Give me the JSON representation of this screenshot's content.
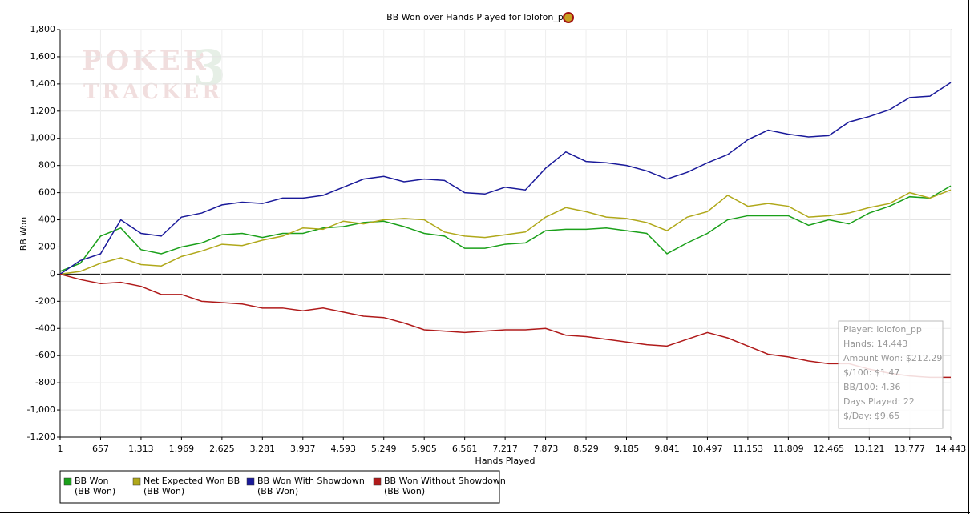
{
  "chart_data": {
    "type": "line",
    "title": "BB Won over Hands Played for lolofon_pp",
    "xlabel": "Hands Played",
    "ylabel": "BB Won",
    "watermark": [
      "POKER",
      "TRACKER",
      "3"
    ],
    "x": [
      1,
      329,
      657,
      985,
      1313,
      1641,
      1969,
      2297,
      2625,
      2953,
      3281,
      3609,
      3937,
      4265,
      4593,
      4921,
      5249,
      5577,
      5905,
      6233,
      6561,
      6889,
      7217,
      7545,
      7873,
      8201,
      8529,
      8857,
      9185,
      9513,
      9841,
      10169,
      10497,
      10825,
      11153,
      11481,
      11809,
      12137,
      12465,
      12793,
      13121,
      13449,
      13777,
      14105,
      14443
    ],
    "series": [
      {
        "name": "BB Won",
        "unit": "(BB Won)",
        "color": "#1aa01a",
        "values": [
          20,
          80,
          280,
          340,
          180,
          150,
          200,
          230,
          290,
          300,
          270,
          300,
          300,
          340,
          350,
          380,
          390,
          350,
          300,
          280,
          190,
          190,
          220,
          230,
          320,
          330,
          330,
          340,
          320,
          300,
          150,
          230,
          300,
          400,
          430,
          430,
          430,
          360,
          400,
          370,
          450,
          500,
          570,
          560,
          650
        ]
      },
      {
        "name": "Net Expected Won BB",
        "unit": "(BB Won)",
        "color": "#b0a81a",
        "values": [
          0,
          20,
          80,
          120,
          70,
          60,
          130,
          170,
          220,
          210,
          250,
          280,
          340,
          330,
          390,
          370,
          400,
          410,
          400,
          310,
          280,
          270,
          290,
          310,
          420,
          490,
          460,
          420,
          410,
          380,
          320,
          420,
          460,
          580,
          500,
          520,
          500,
          420,
          430,
          450,
          490,
          520,
          600,
          560,
          620
        ]
      },
      {
        "name": "BB Won With Showdown",
        "unit": "(BB Won)",
        "color": "#1a1a9a",
        "values": [
          0,
          100,
          150,
          400,
          300,
          280,
          420,
          450,
          510,
          530,
          520,
          560,
          560,
          580,
          640,
          700,
          720,
          680,
          700,
          690,
          600,
          590,
          640,
          620,
          780,
          900,
          830,
          820,
          800,
          760,
          700,
          750,
          820,
          880,
          990,
          1060,
          1030,
          1010,
          1020,
          1120,
          1160,
          1210,
          1300,
          1310,
          1410
        ]
      },
      {
        "name": "BB Won Without Showdown",
        "unit": "(BB Won)",
        "color": "#b01a1a",
        "values": [
          0,
          -40,
          -70,
          -60,
          -90,
          -150,
          -150,
          -200,
          -210,
          -220,
          -250,
          -250,
          -270,
          -250,
          -280,
          -310,
          -320,
          -360,
          -410,
          -420,
          -430,
          -420,
          -410,
          -410,
          -400,
          -450,
          -460,
          -480,
          -500,
          -520,
          -530,
          -480,
          -430,
          -470,
          -530,
          -590,
          -610,
          -640,
          -660,
          -660,
          -700,
          -730,
          -750,
          -760,
          -760
        ]
      }
    ],
    "xlim": [
      1,
      14443
    ],
    "xticks": [
      1,
      657,
      {
        "value": 1313,
        "label": "1,313"
      },
      {
        "value": 1969,
        "label": "1,969"
      },
      {
        "value": 2625,
        "label": "2,625"
      },
      {
        "value": 3281,
        "label": "3,281"
      },
      {
        "value": 3937,
        "label": "3,937"
      },
      {
        "value": 4593,
        "label": "4,593"
      },
      {
        "value": 5249,
        "label": "5,249"
      },
      {
        "value": 5905,
        "label": "5,905"
      },
      {
        "value": 6561,
        "label": "6,561"
      },
      {
        "value": 7217,
        "label": "7,217"
      },
      {
        "value": 7873,
        "label": "7,873"
      },
      {
        "value": 8529,
        "label": "8,529"
      },
      {
        "value": 9185,
        "label": "9,185"
      },
      {
        "value": 9841,
        "label": "9,841"
      },
      {
        "value": 10497,
        "label": "10,497"
      },
      {
        "value": 11153,
        "label": "11,153"
      },
      {
        "value": 11809,
        "label": "11,809"
      },
      {
        "value": 12465,
        "label": "12,465"
      },
      {
        "value": 13121,
        "label": "13,121"
      },
      {
        "value": 13777,
        "label": "13,777"
      },
      {
        "value": 14443,
        "label": "14,443"
      }
    ],
    "ylim": [
      -1200,
      1800
    ],
    "yticks": [
      {
        "value": -1200,
        "label": "-1,200"
      },
      {
        "value": -1000,
        "label": "-1,000"
      },
      -800,
      -600,
      -400,
      -200,
      0,
      200,
      400,
      600,
      800,
      {
        "value": 1000,
        "label": "1,000"
      },
      {
        "value": 1200,
        "label": "1,200"
      },
      {
        "value": 1400,
        "label": "1,400"
      },
      {
        "value": 1600,
        "label": "1,600"
      },
      {
        "value": 1800,
        "label": "1,800"
      }
    ],
    "grid": true,
    "tooltip": [
      "Player: lolofon_pp",
      "Hands: 14,443",
      "Amount Won: $212.29",
      "$/100: $1.47",
      "BB/100: 4.36",
      "Days Played: 22",
      "$/Day: $9.65"
    ]
  }
}
